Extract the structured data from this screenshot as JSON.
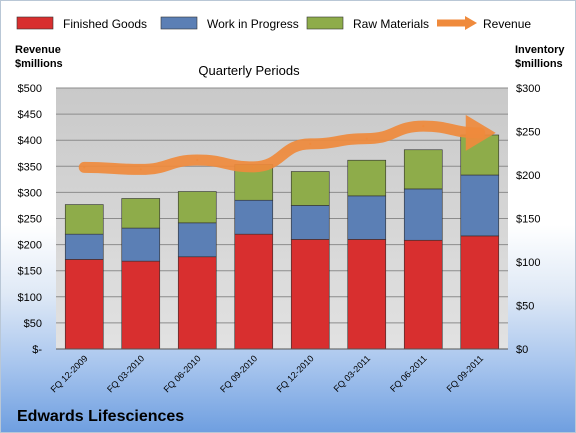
{
  "chart_data": {
    "type": "bar",
    "stacked": true,
    "title": "Quarterly Periods",
    "company": "Edwards Lifesciences",
    "y_left_label_line1": "Revenue",
    "y_left_label_line2": "$millions",
    "y_right_label_line1": "Inventory",
    "y_right_label_line2": "$millions",
    "y_left_ticks": [
      "$-",
      "$50",
      "$100",
      "$150",
      "$200",
      "$250",
      "$300",
      "$350",
      "$400",
      "$450",
      "$500"
    ],
    "y_right_ticks": [
      "$0",
      "$50",
      "$100",
      "$150",
      "$200",
      "$250",
      "$300"
    ],
    "y_left_range": [
      0,
      500
    ],
    "y_right_range": [
      0,
      300
    ],
    "categories": [
      "FQ 12-2009",
      "FQ 03-2010",
      "FQ 06-2010",
      "FQ 09-2010",
      "FQ 12-2010",
      "FQ 03-2011",
      "FQ 06-2011",
      "FQ 09-2011"
    ],
    "series": [
      {
        "name": "Finished Goods",
        "axis": "right",
        "color": "#d82f2f",
        "values": [
          103,
          101,
          106,
          132,
          126,
          126,
          125,
          130
        ]
      },
      {
        "name": "Work in Progress",
        "axis": "right",
        "color": "#5b7fb5",
        "values": [
          29,
          38,
          39,
          39,
          39,
          50,
          59,
          70
        ]
      },
      {
        "name": "Raw Materials",
        "axis": "right",
        "color": "#8eac4a",
        "values": [
          34,
          34,
          36,
          41,
          39,
          41,
          45,
          46
        ]
      },
      {
        "name": "Revenue",
        "axis": "left",
        "type": "line",
        "color": "#ef8a3c",
        "values": [
          348,
          344,
          362,
          349,
          393,
          403,
          427,
          414
        ]
      }
    ],
    "legend_position": "top",
    "grid": true
  }
}
